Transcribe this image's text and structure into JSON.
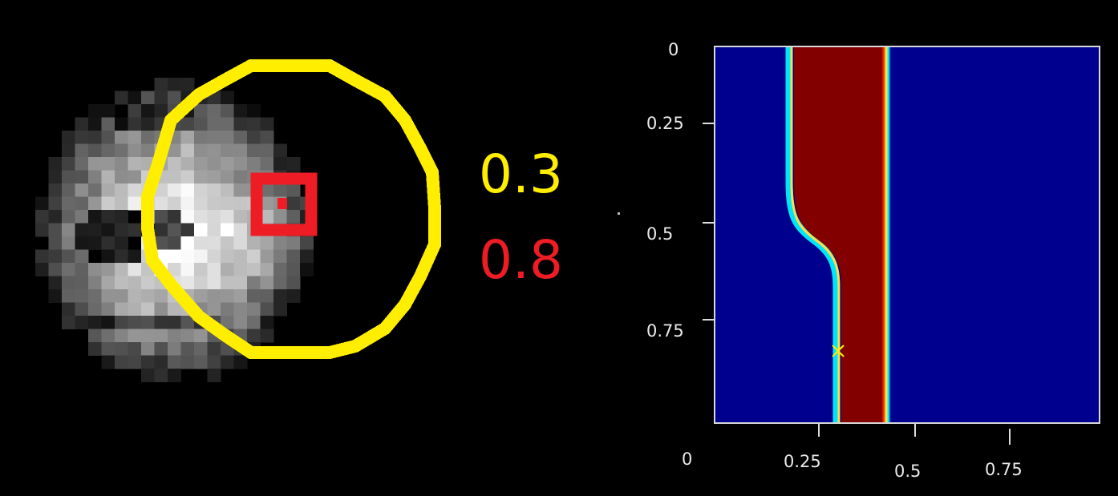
{
  "values": {
    "yellow_value": "0.3",
    "red_value": "0.8"
  },
  "plot": {
    "y_ticks": [
      "0",
      "0.25",
      "0.5",
      "0.75"
    ],
    "x_ticks": [
      "0",
      "0.25",
      "0.5",
      "0.75"
    ]
  },
  "colors": {
    "yellow": "#FFEE00",
    "red": "#EE1C24",
    "plot_background": "#00008E",
    "plot_band": "#830000",
    "background": "#000000"
  }
}
